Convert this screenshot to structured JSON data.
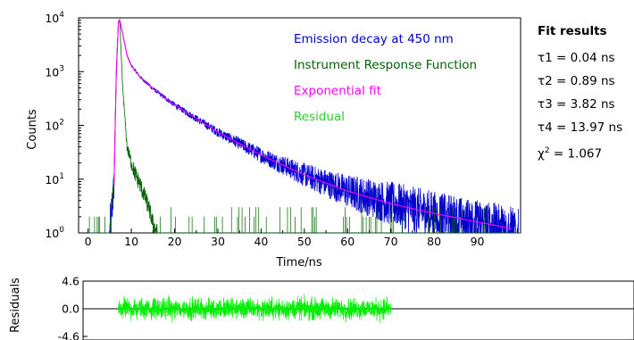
{
  "fit_panel": {
    "title": "Fit results",
    "lines": [
      "τ1 = 0.04 ns",
      "τ2 = 0.89 ns",
      "τ3 = 3.82 ns",
      "τ4 = 13.97 ns"
    ],
    "chi": {
      "symbol": "χ",
      "exponent": "2",
      "text": " = 1.067"
    }
  },
  "chart_data": [
    {
      "type": "line",
      "ylabel": "Counts",
      "xlabel": "Time/ns",
      "yscale": "log",
      "xlim": [
        -2.2,
        100
      ],
      "ylim": [
        1,
        10000
      ],
      "x_ticks": [
        "0",
        "10",
        "20",
        "30",
        "40",
        "50",
        "60",
        "70",
        "80",
        "90"
      ],
      "y_ticks": [
        {
          "base": "10",
          "exp": "0"
        },
        {
          "base": "10",
          "exp": "1"
        },
        {
          "base": "10",
          "exp": "2"
        },
        {
          "base": "10",
          "exp": "3"
        },
        {
          "base": "10",
          "exp": "4"
        }
      ],
      "legend_position": "top-right",
      "series": [
        {
          "name": "Emission decay at 450 nm",
          "color": "#0000cc",
          "x": [
            5,
            6,
            6.5,
            7,
            7.3,
            8,
            9,
            10,
            12,
            15,
            20,
            30,
            40,
            50,
            60,
            70,
            80,
            90,
            98
          ],
          "y": [
            1,
            8,
            800,
            8000,
            9200,
            5000,
            2000,
            1300,
            800,
            480,
            240,
            75,
            28,
            12,
            6,
            3.5,
            2.3,
            1.6,
            1.2
          ]
        },
        {
          "name": "Instrument Response Function",
          "color": "#006400",
          "x": [
            5,
            6,
            6.5,
            7,
            7.3,
            8,
            9,
            10,
            11,
            12,
            13,
            14,
            15,
            16
          ],
          "y": [
            1,
            10,
            1000,
            8500,
            9000,
            500,
            40,
            20,
            12,
            8,
            5,
            3,
            1.5,
            1
          ]
        },
        {
          "name": "Exponential fit",
          "color": "#ff00ff",
          "x": [
            6,
            6.5,
            7,
            7.3,
            8,
            9,
            10,
            12,
            15,
            20,
            30,
            40,
            50,
            60,
            70,
            80,
            90,
            98
          ],
          "y": [
            8,
            800,
            8000,
            9200,
            5000,
            2000,
            1300,
            800,
            480,
            240,
            75,
            28,
            12,
            6,
            3.5,
            2.3,
            1.6,
            1.2
          ]
        },
        {
          "name": "Residual",
          "color": "#33cc33",
          "x": [],
          "y": []
        }
      ]
    },
    {
      "type": "line",
      "ylabel": "Residuals",
      "ylim": [
        -4.6,
        4.6
      ],
      "y_ticks": [
        "4.6",
        "0.0",
        "-4.6"
      ],
      "series": [
        {
          "name": "Residual",
          "color": "#00ee00",
          "x_range": [
            7,
            70
          ],
          "amplitude": 2.6
        }
      ]
    }
  ]
}
